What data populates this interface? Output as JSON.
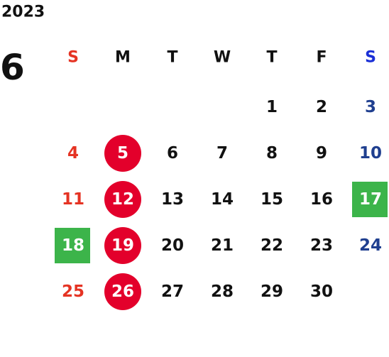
{
  "year": "2023",
  "month": "6",
  "weekdays": [
    "S",
    "M",
    "T",
    "W",
    "T",
    "F",
    "S"
  ],
  "weeks": [
    [
      null,
      null,
      null,
      null,
      1,
      2,
      3
    ],
    [
      4,
      5,
      6,
      7,
      8,
      9,
      10
    ],
    [
      11,
      12,
      13,
      14,
      15,
      16,
      17
    ],
    [
      18,
      19,
      20,
      21,
      22,
      23,
      24
    ],
    [
      25,
      26,
      27,
      28,
      29,
      30,
      null
    ]
  ]
}
